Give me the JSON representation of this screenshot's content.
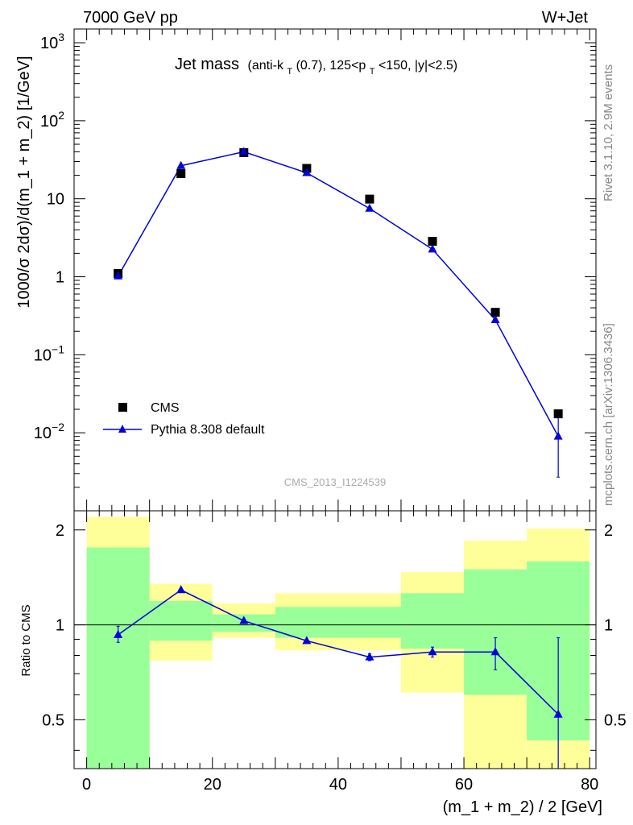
{
  "header": {
    "energy_label": "7000 GeV pp",
    "process_label": "W+Jet"
  },
  "side_labels": {
    "rivet": "Rivet 3.1.10,  2.9M events",
    "mcplots": "mcplots.cern.ch [arXiv:1306.3436]"
  },
  "chart_data": [
    {
      "type": "scatter",
      "panel": "main",
      "title": "Jet mass",
      "subtitle_parts": {
        "a": "(anti-k",
        "a_sub": "T",
        "b": "(0.7), 125<p",
        "b_sub": "T",
        "c": "<150, |y|<2.5)"
      },
      "ylabel": "1000/σ 2dσ)/d(m_1 + m_2) [1/GeV]",
      "yscale": "log",
      "ylim": [
        0.001,
        1500
      ],
      "xlim": [
        -2,
        81
      ],
      "y_ticks": [
        {
          "value": 1000,
          "label": "10",
          "exp": "3"
        },
        {
          "value": 100,
          "label": "10",
          "exp": "2"
        },
        {
          "value": 10,
          "label": "10",
          "exp": ""
        },
        {
          "value": 1,
          "label": "1",
          "exp": ""
        },
        {
          "value": 0.1,
          "label": "10",
          "exp": "−1"
        },
        {
          "value": 0.01,
          "label": "10",
          "exp": "−2"
        }
      ],
      "watermark": "CMS_2013_I1224539",
      "series": [
        {
          "name": "CMS",
          "marker": "square",
          "color": "#000000",
          "x": [
            5,
            15,
            25,
            35,
            45,
            55,
            65,
            75
          ],
          "y": [
            1.1,
            21,
            39,
            24.5,
            9.9,
            2.85,
            0.35,
            0.0175
          ]
        },
        {
          "name": "Pythia 8.308 default",
          "marker": "triangle",
          "color": "#0000dd",
          "x": [
            5,
            15,
            25,
            35,
            45,
            55,
            65,
            75
          ],
          "y": [
            1.02,
            26.5,
            40,
            21.5,
            7.5,
            2.25,
            0.28,
            0.009
          ],
          "yerr_low": [
            0,
            0,
            0,
            0,
            0,
            0,
            0,
            0.0063
          ],
          "yerr_high": [
            0,
            0,
            0,
            0,
            0,
            0,
            0,
            0.0082
          ]
        }
      ],
      "legend": "lower-left"
    },
    {
      "type": "line",
      "panel": "ratio",
      "ylabel": "Ratio to CMS",
      "xlabel": "(m_1 + m_2) / 2 [GeV]",
      "ylim": [
        0.35,
        2.3
      ],
      "xlim": [
        -2,
        81
      ],
      "x_ticks": [
        0,
        20,
        40,
        60,
        80
      ],
      "y_ticks": [
        0.5,
        1,
        2
      ],
      "y_tick_labels": [
        "0.5",
        "1",
        "2"
      ],
      "reference_line": 1,
      "bands": [
        {
          "x0": 0,
          "x1": 10,
          "yellow": [
            0.35,
            2.2
          ],
          "green": [
            0.35,
            1.76
          ]
        },
        {
          "x0": 10,
          "x1": 20,
          "yellow": [
            0.77,
            1.35
          ],
          "green": [
            0.89,
            1.19
          ]
        },
        {
          "x0": 20,
          "x1": 30,
          "yellow": [
            0.91,
            1.17
          ],
          "green": [
            0.95,
            1.08
          ]
        },
        {
          "x0": 30,
          "x1": 40,
          "yellow": [
            0.83,
            1.26
          ],
          "green": [
            0.91,
            1.14
          ]
        },
        {
          "x0": 40,
          "x1": 50,
          "yellow": [
            0.83,
            1.26
          ],
          "green": [
            0.91,
            1.14
          ]
        },
        {
          "x0": 50,
          "x1": 60,
          "yellow": [
            0.61,
            1.47
          ],
          "green": [
            0.84,
            1.26
          ]
        },
        {
          "x0": 60,
          "x1": 70,
          "yellow": [
            0.35,
            1.85
          ],
          "green": [
            0.6,
            1.5
          ]
        },
        {
          "x0": 70,
          "x1": 80,
          "yellow": [
            0.35,
            2.02
          ],
          "green": [
            0.43,
            1.59
          ]
        }
      ],
      "series": [
        {
          "name": "Pythia 8.308 default",
          "color": "#0000dd",
          "x": [
            5,
            15,
            25,
            35,
            45,
            55,
            65,
            75
          ],
          "y": [
            0.93,
            1.29,
            1.03,
            0.89,
            0.79,
            0.82,
            0.82,
            0.52
          ],
          "yerr_low": [
            0.05,
            0.01,
            0.01,
            0.01,
            0.02,
            0.03,
            0.1,
            0.17
          ],
          "yerr_high": [
            0.06,
            0.01,
            0.01,
            0.01,
            0.02,
            0.03,
            0.09,
            0.39
          ]
        }
      ]
    }
  ]
}
